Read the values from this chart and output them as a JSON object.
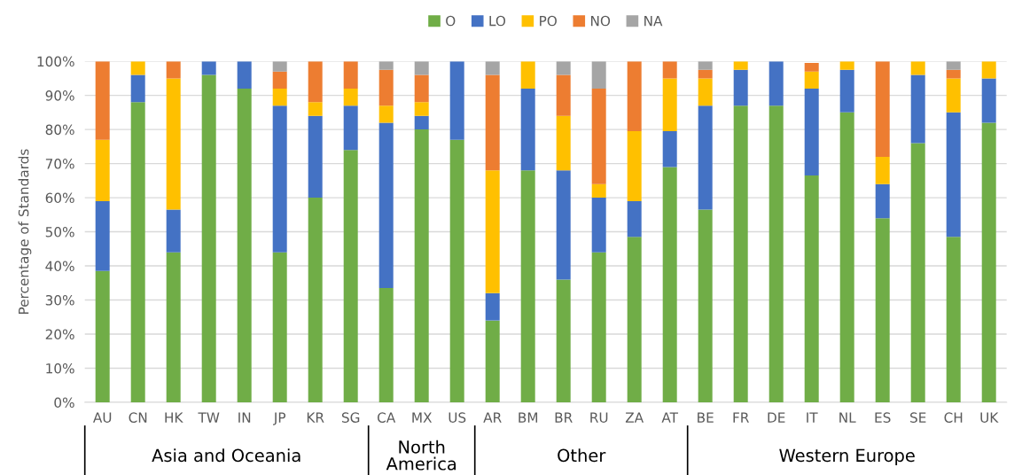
{
  "chart_data": {
    "type": "bar",
    "stacked": true,
    "ylabel": "Percentage of Standards",
    "categories": [
      "AU",
      "CN",
      "HK",
      "TW",
      "IN",
      "JP",
      "KR",
      "SG",
      "CA",
      "MX",
      "US",
      "AR",
      "BM",
      "BR",
      "RU",
      "ZA",
      "AT",
      "BE",
      "FR",
      "DE",
      "IT",
      "NL",
      "ES",
      "SE",
      "CH",
      "UK"
    ],
    "series": [
      {
        "name": "O",
        "color": "#70ad47",
        "values": [
          38.5,
          88,
          44,
          96,
          92,
          44,
          60,
          74,
          33.5,
          80,
          77,
          24,
          68,
          36,
          44,
          48.5,
          69,
          56.5,
          87,
          87,
          66.5,
          85,
          54,
          76,
          48.5,
          82
        ]
      },
      {
        "name": "LO",
        "color": "#4472c4",
        "values": [
          20.5,
          8,
          12.5,
          4,
          8,
          43,
          24,
          13,
          48.5,
          4,
          23,
          8,
          24,
          32,
          16,
          10.5,
          10.5,
          30.5,
          10.5,
          13,
          25.5,
          12.5,
          10,
          20,
          36.5,
          13
        ]
      },
      {
        "name": "PO",
        "color": "#ffc000",
        "values": [
          18,
          4,
          38.5,
          0,
          0,
          5,
          4,
          5,
          5,
          4,
          0,
          36,
          8,
          16,
          4,
          20.5,
          15.5,
          8,
          2.5,
          0,
          5,
          2.5,
          8,
          4,
          10,
          5
        ]
      },
      {
        "name": "NO",
        "color": "#ed7d31",
        "values": [
          23,
          0,
          5,
          0,
          0,
          5,
          12,
          8,
          10.5,
          8,
          0,
          28,
          0,
          12,
          28,
          20.5,
          5,
          2.5,
          0,
          0,
          2.5,
          0,
          28,
          0,
          2.5,
          0
        ]
      },
      {
        "name": "NA",
        "color": "#a5a5a5",
        "values": [
          0,
          0,
          0,
          0,
          0,
          3,
          0,
          0,
          2.5,
          4,
          0,
          4,
          0,
          4,
          8,
          0,
          0,
          2.5,
          0,
          0,
          0,
          0,
          0,
          0,
          2.5,
          0
        ]
      }
    ],
    "ylim": [
      0,
      100
    ],
    "yticks": [
      {
        "value": 0,
        "label": "0%"
      },
      {
        "value": 10,
        "label": "10%"
      },
      {
        "value": 20,
        "label": "20%"
      },
      {
        "value": 30,
        "label": "30%"
      },
      {
        "value": 40,
        "label": "40%"
      },
      {
        "value": 50,
        "label": "50%"
      },
      {
        "value": 60,
        "label": "60%"
      },
      {
        "value": 70,
        "label": "70%"
      },
      {
        "value": 80,
        "label": "80%"
      },
      {
        "value": 90,
        "label": "90%"
      },
      {
        "value": 100,
        "label": "100%"
      }
    ],
    "grid": "y",
    "legend": "top",
    "annotations": [
      "Asia and Oceania",
      "North\nAmerica",
      "Other",
      "Western Europe"
    ]
  }
}
